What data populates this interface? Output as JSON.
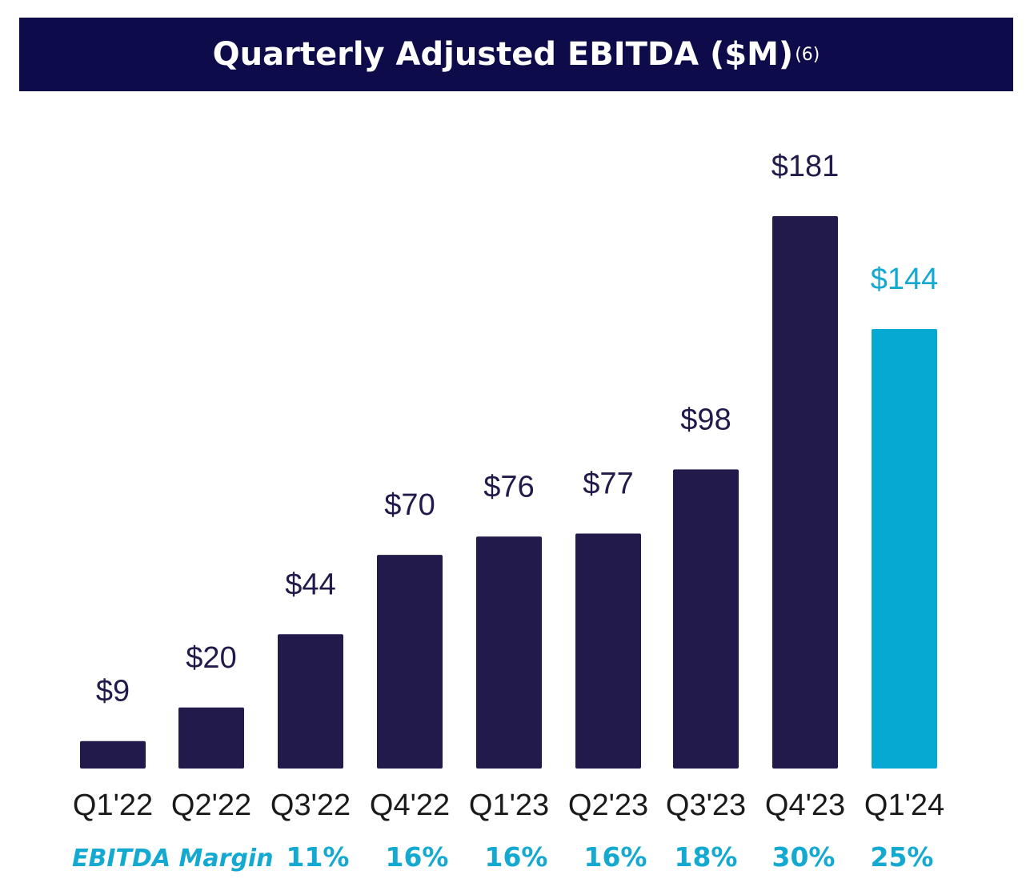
{
  "title": "Quarterly Adjusted EBITDA ($M)",
  "title_footnote": "(6)",
  "colors": {
    "title_bg": "#0d0b4a",
    "bar_default": "#211a4b",
    "bar_highlight": "#05a9d1",
    "label_default": "#211a4b",
    "label_highlight": "#14a9d0",
    "margin_text": "#14a9d0"
  },
  "chart_data": {
    "type": "bar",
    "title": "Quarterly Adjusted EBITDA ($M)",
    "categories": [
      "Q1'22",
      "Q2'22",
      "Q3'22",
      "Q4'22",
      "Q1'23",
      "Q2'23",
      "Q3'23",
      "Q4'23",
      "Q1'24"
    ],
    "values": [
      9,
      20,
      44,
      70,
      76,
      77,
      98,
      181,
      144
    ],
    "value_labels": [
      "$9",
      "$20",
      "$44",
      "$70",
      "$76",
      "$77",
      "$98",
      "$181",
      "$144"
    ],
    "highlight_index": 8,
    "ylim": [
      0,
      181
    ],
    "grid": false,
    "margin_label": "EBITDA Margin",
    "margin_values": [
      "11%",
      "16%",
      "16%",
      "16%",
      "18%",
      "30%",
      "25%"
    ]
  }
}
